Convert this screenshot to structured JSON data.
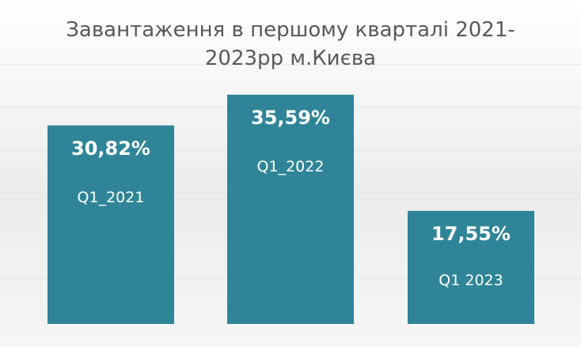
{
  "chart_data": {
    "type": "bar",
    "title": "Завантаження в першому кварталі 2021-2023рр м.Києва",
    "categories": [
      "Q1_2021",
      "Q1_2022",
      "Q1 2023"
    ],
    "values": [
      30.82,
      35.59,
      17.55
    ],
    "value_labels": [
      "30,82%",
      "35,59%",
      "17,55%"
    ],
    "bar_color": "#2f8597",
    "ylim": [
      0,
      46
    ],
    "grid": true,
    "legend": "none"
  }
}
